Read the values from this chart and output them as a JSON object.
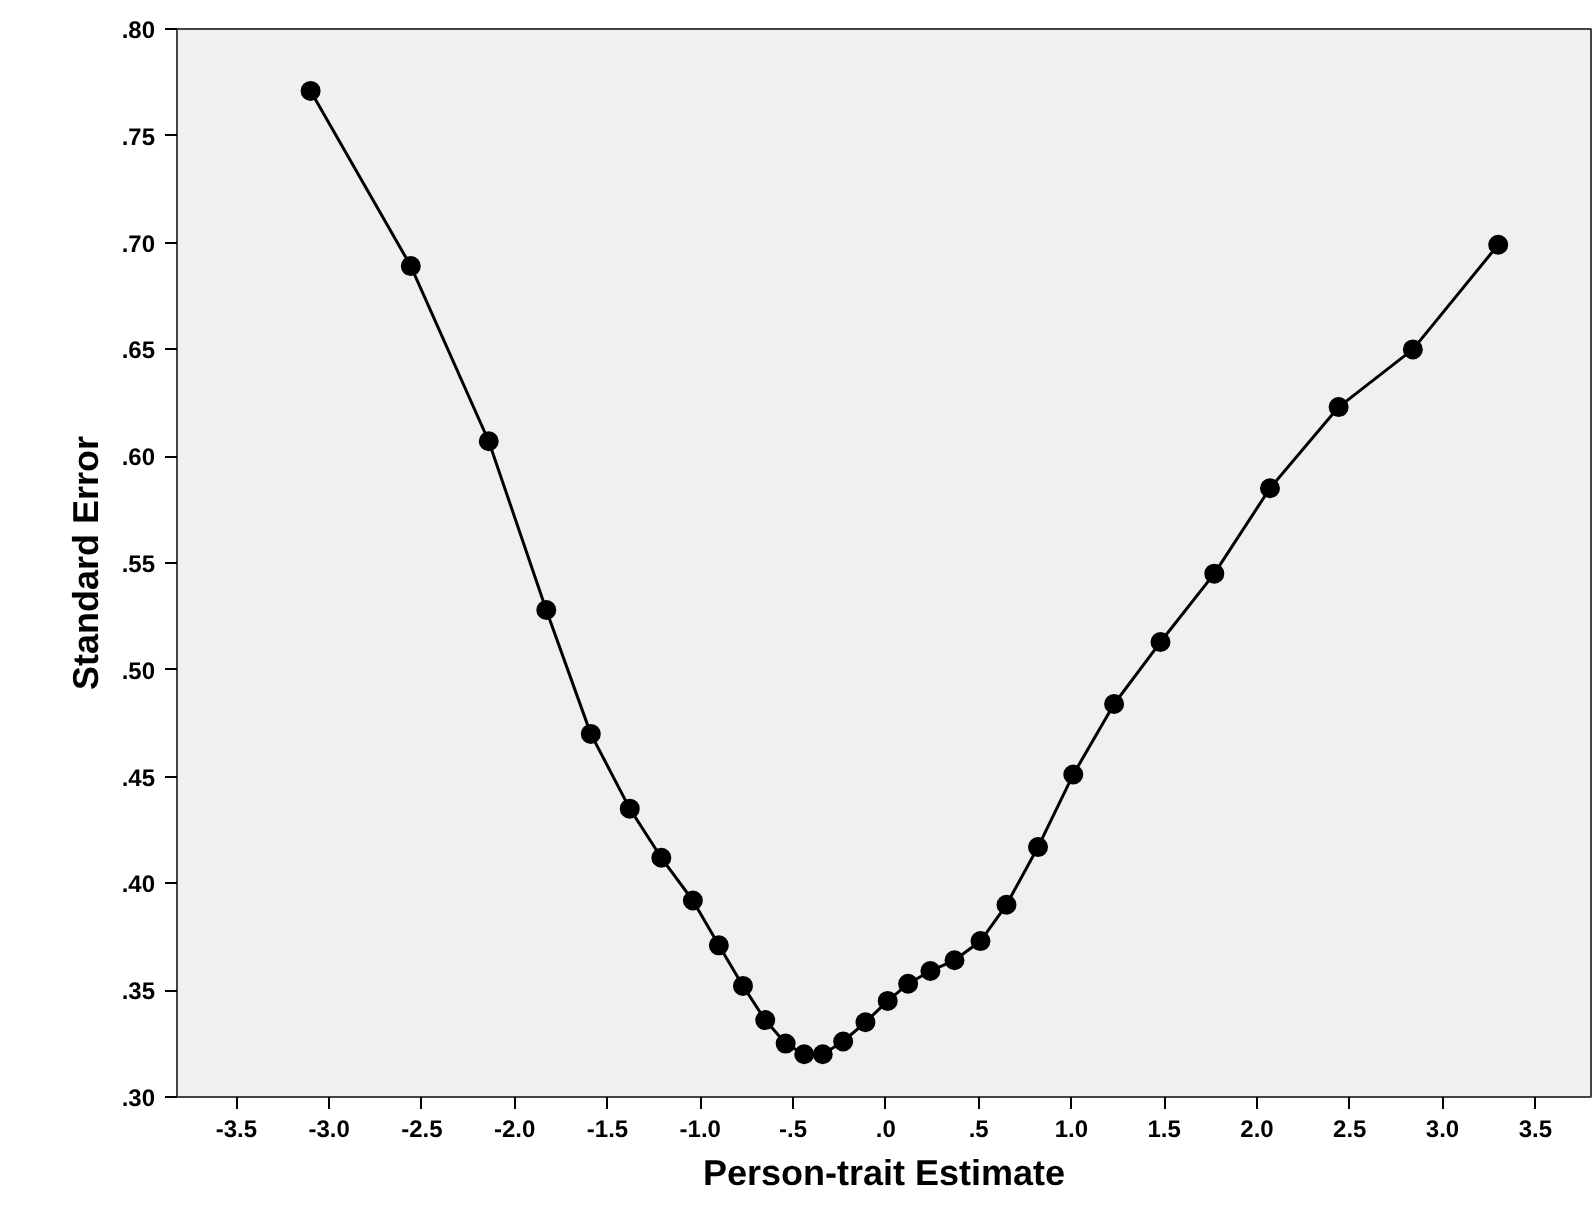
{
  "chart_data": {
    "type": "line",
    "xlabel": "Person-trait Estimate",
    "ylabel": "Standard Error",
    "x": [
      -3.1,
      -2.56,
      -2.14,
      -1.83,
      -1.59,
      -1.38,
      -1.21,
      -1.04,
      -0.9,
      -0.77,
      -0.65,
      -0.54,
      -0.44,
      -0.34,
      -0.23,
      -0.11,
      0.01,
      0.12,
      0.24,
      0.37,
      0.51,
      0.65,
      0.82,
      1.01,
      1.23,
      1.48,
      1.77,
      2.07,
      2.44,
      2.84,
      3.3
    ],
    "series": [
      {
        "color": "#000000",
        "values": [
          0.771,
          0.689,
          0.607,
          0.528,
          0.47,
          0.435,
          0.412,
          0.392,
          0.371,
          0.352,
          0.336,
          0.325,
          0.32,
          0.32,
          0.326,
          0.335,
          0.345,
          0.353,
          0.359,
          0.364,
          0.373,
          0.39,
          0.417,
          0.451,
          0.484,
          0.513,
          0.545,
          0.585,
          0.623,
          0.65,
          0.699
        ]
      }
    ],
    "marker": "circle",
    "line_style": "solid",
    "grid": false,
    "xlim": [
      -3.82,
      3.8
    ],
    "ylim": [
      0.3,
      0.8
    ],
    "xticks": [
      {
        "value": -3.5,
        "label": "-3.5"
      },
      {
        "value": -3.0,
        "label": "-3.0"
      },
      {
        "value": -2.5,
        "label": "-2.5"
      },
      {
        "value": -2.0,
        "label": "-2.0"
      },
      {
        "value": -1.5,
        "label": "-1.5"
      },
      {
        "value": -1.0,
        "label": "-1.0"
      },
      {
        "value": -0.5,
        "label": "-.5"
      },
      {
        "value": 0,
        "label": ".0"
      },
      {
        "value": 0.5,
        "label": ".5"
      },
      {
        "value": 1.0,
        "label": "1.0"
      },
      {
        "value": 1.5,
        "label": "1.5"
      },
      {
        "value": 2.0,
        "label": "2.0"
      },
      {
        "value": 2.5,
        "label": "2.5"
      },
      {
        "value": 3.0,
        "label": "3.0"
      },
      {
        "value": 3.5,
        "label": "3.5"
      }
    ],
    "yticks": [
      {
        "value": 0.3,
        "label": ".30"
      },
      {
        "value": 0.35,
        "label": ".35"
      },
      {
        "value": 0.4,
        "label": ".40"
      },
      {
        "value": 0.45,
        "label": ".45"
      },
      {
        "value": 0.5,
        "label": ".50"
      },
      {
        "value": 0.55,
        "label": ".55"
      },
      {
        "value": 0.6,
        "label": ".60"
      },
      {
        "value": 0.65,
        "label": ".65"
      },
      {
        "value": 0.7,
        "label": ".70"
      },
      {
        "value": 0.75,
        "label": ".75"
      },
      {
        "value": 0.8,
        "label": ".80"
      }
    ]
  }
}
